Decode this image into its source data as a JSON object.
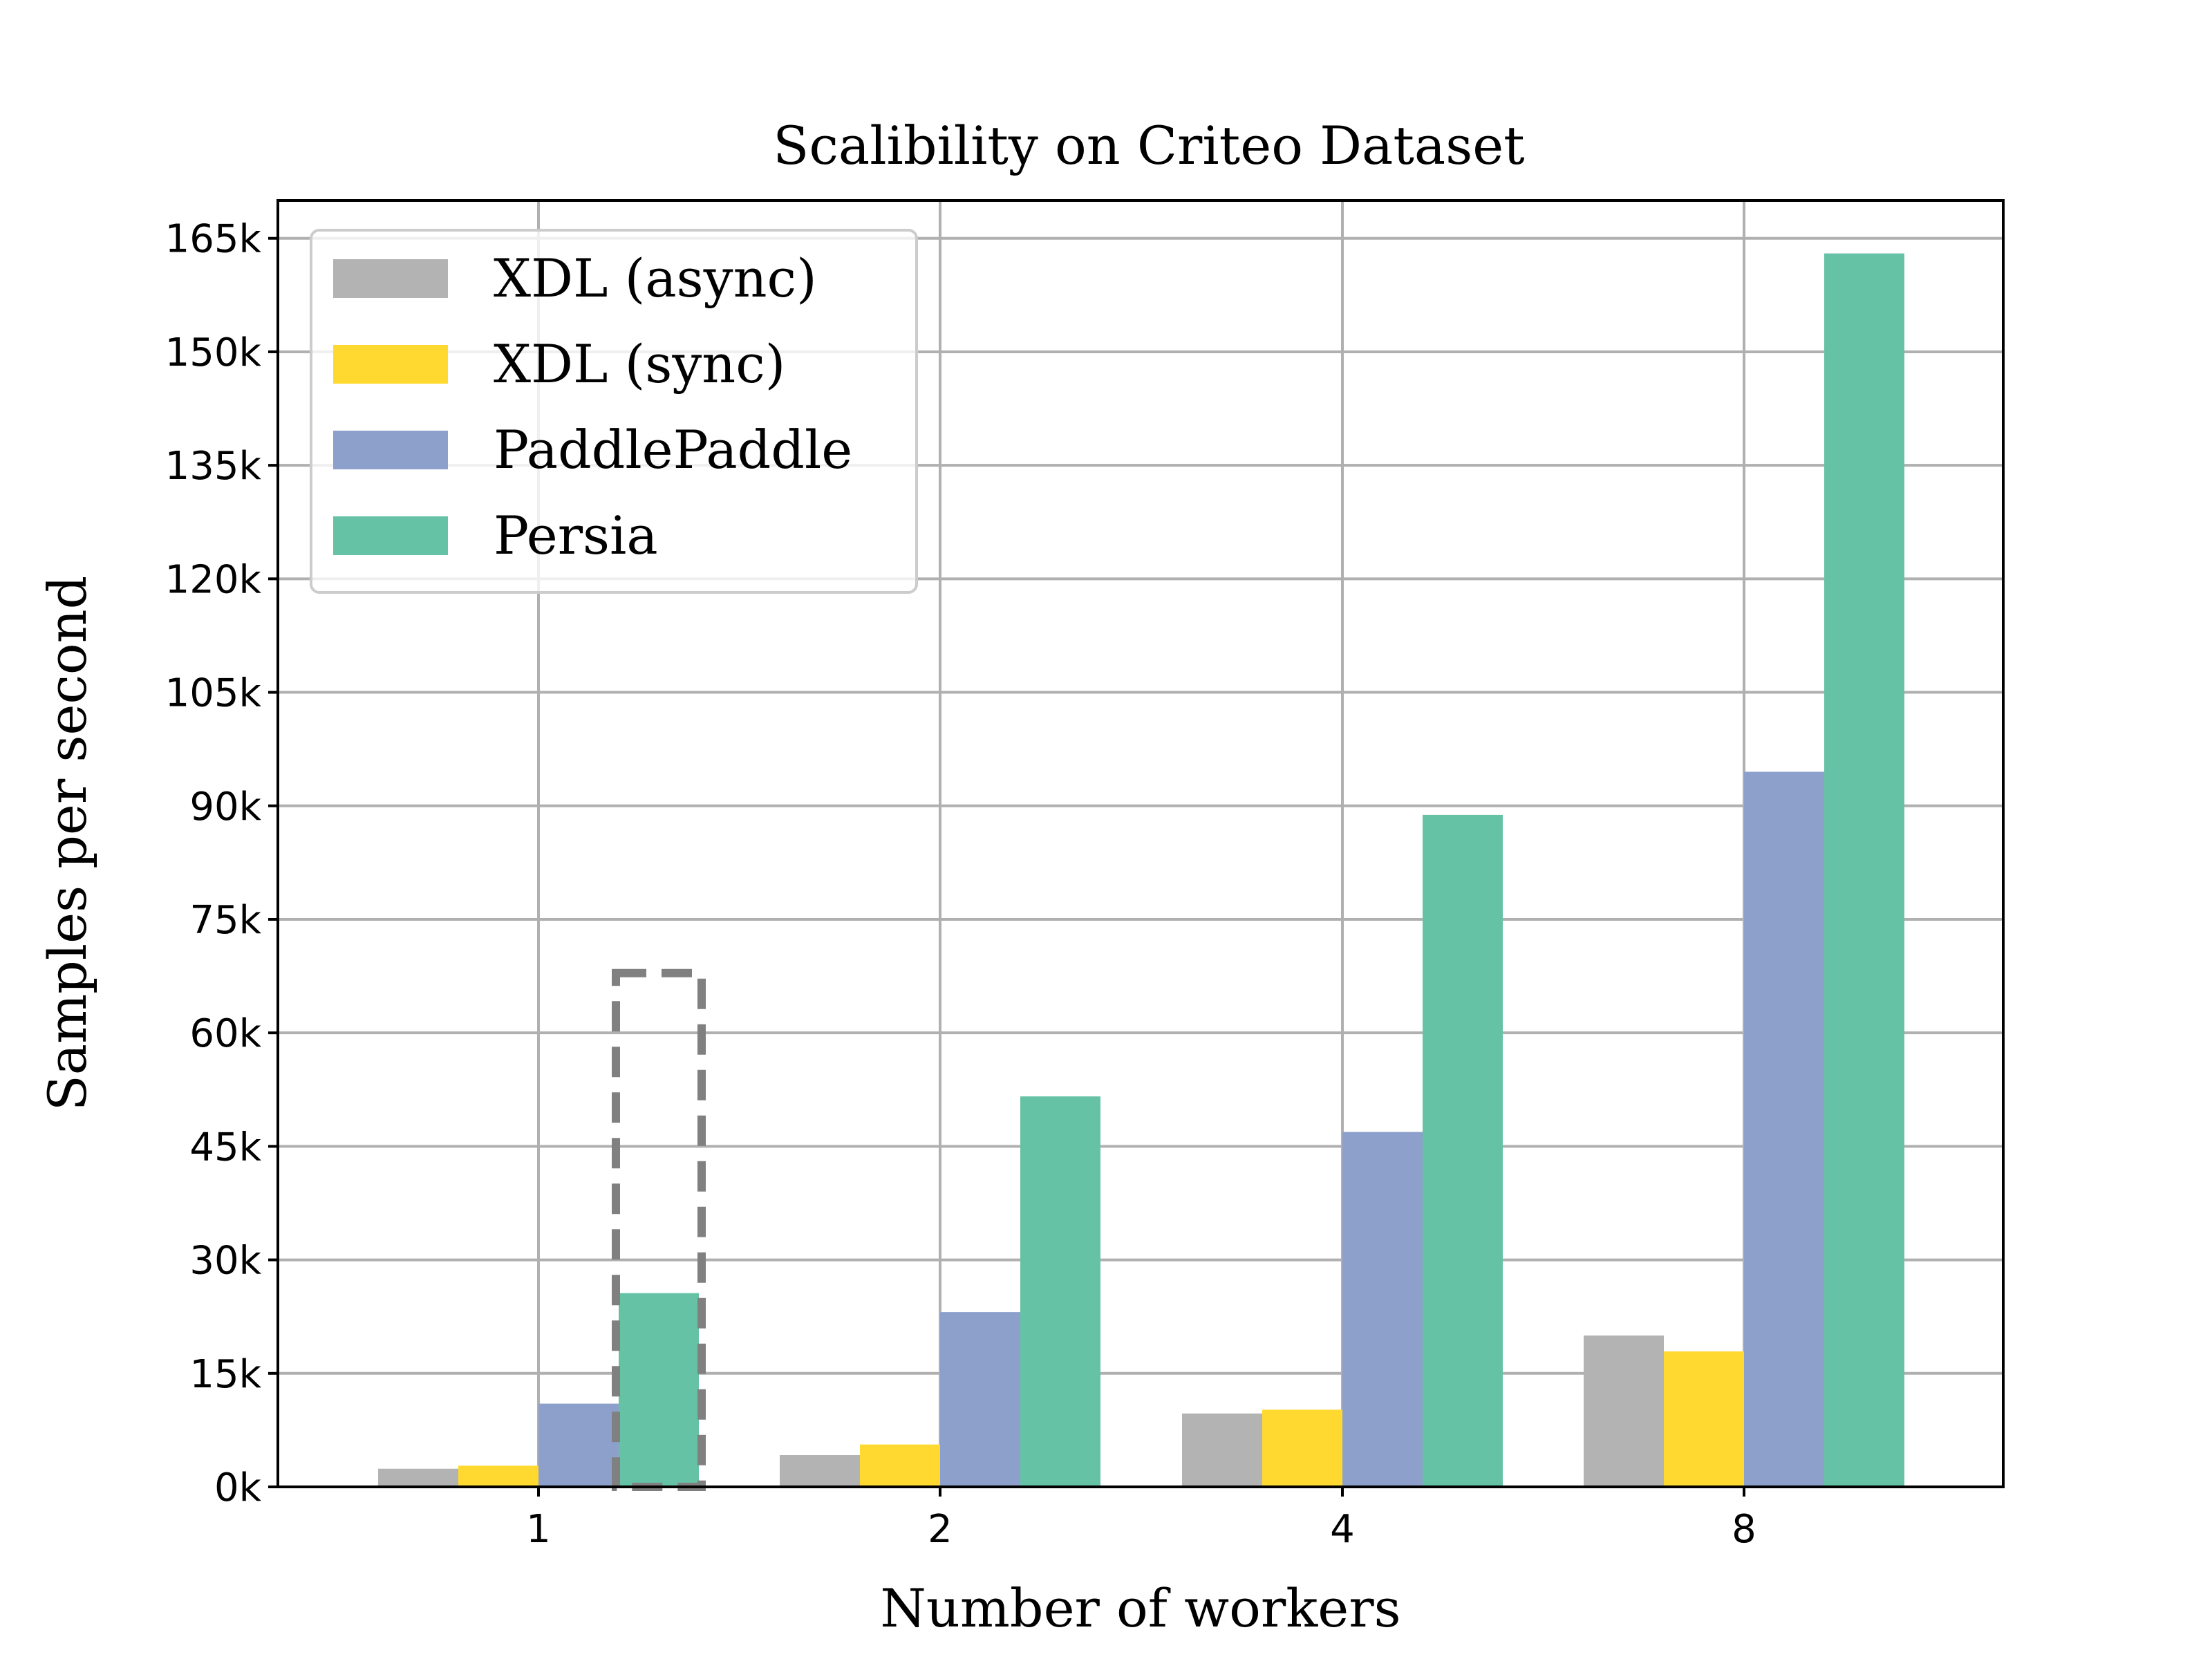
{
  "chart_data": {
    "type": "bar",
    "title": "Scalibility on Criteo Dataset",
    "xlabel": "Number of workers",
    "ylabel": "Samples per second",
    "categories": [
      "1",
      "2",
      "4",
      "8"
    ],
    "ylim": [
      0,
      170000
    ],
    "yticks": [
      0,
      15000,
      30000,
      45000,
      60000,
      75000,
      90000,
      105000,
      120000,
      135000,
      150000,
      165000
    ],
    "ytick_labels": [
      "0k",
      "15k",
      "30k",
      "45k",
      "60k",
      "75k",
      "90k",
      "105k",
      "120k",
      "135k",
      "150k",
      "165k"
    ],
    "grid": true,
    "legend_position": "top-left",
    "series": [
      {
        "name": "XDL (async)",
        "color": "#b3b3b3",
        "values": [
          2400,
          4200,
          9700,
          20000
        ]
      },
      {
        "name": "XDL (sync)",
        "color": "#ffd92f",
        "values": [
          2800,
          5600,
          10200,
          17900
        ]
      },
      {
        "name": "PaddlePaddle",
        "color": "#8da0cb",
        "values": [
          11000,
          23100,
          46900,
          94500
        ]
      },
      {
        "name": "Persia",
        "color": "#66c2a5",
        "values": [
          25600,
          51600,
          88800,
          163000
        ]
      }
    ],
    "annotations": [
      {
        "type": "dashed-box",
        "category": "1",
        "series": "Persia",
        "value": 67900,
        "color": "#808080"
      }
    ]
  }
}
